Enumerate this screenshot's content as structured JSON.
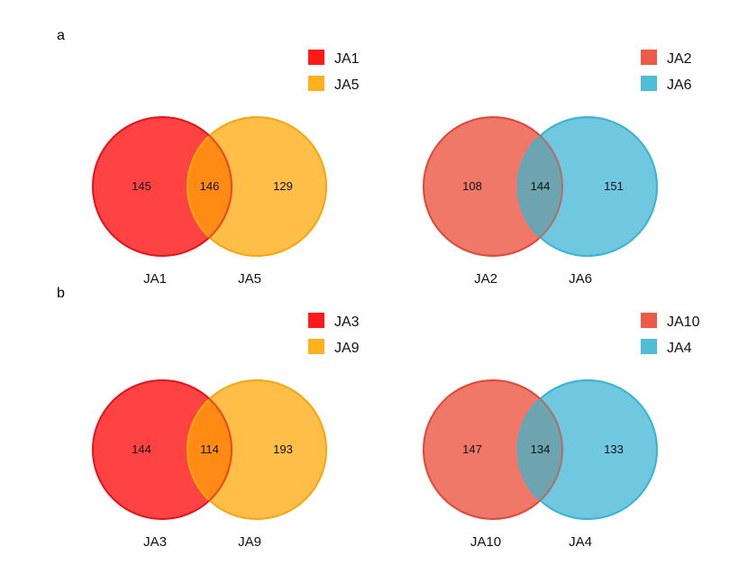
{
  "panels": [
    {
      "letter": "a",
      "diagrams": [
        {
          "sets": [
            {
              "name": "JA1",
              "color": "#ff1a1a",
              "stroke": "#e0181e"
            },
            {
              "name": "JA5",
              "color": "#ffb01e",
              "stroke": "#f5a812"
            }
          ],
          "counts": {
            "left_only": "145",
            "overlap": "146",
            "right_only": "129"
          },
          "overlap_color": "#ff8a14"
        },
        {
          "sets": [
            {
              "name": "JA2",
              "color": "#ec5a48",
              "stroke": "#de4b3c"
            },
            {
              "name": "JA6",
              "color": "#4fbcd8",
              "stroke": "#3fb4d2"
            }
          ],
          "counts": {
            "left_only": "108",
            "overlap": "144",
            "right_only": "151"
          },
          "overlap_color": "#6fa3ae"
        }
      ]
    },
    {
      "letter": "b",
      "diagrams": [
        {
          "sets": [
            {
              "name": "JA3",
              "color": "#ff1a1a",
              "stroke": "#e0181e"
            },
            {
              "name": "JA9",
              "color": "#ffb01e",
              "stroke": "#f5a812"
            }
          ],
          "counts": {
            "left_only": "144",
            "overlap": "114",
            "right_only": "193"
          },
          "overlap_color": "#ff8a14"
        },
        {
          "sets": [
            {
              "name": "JA10",
              "color": "#ec5a48",
              "stroke": "#de4b3c"
            },
            {
              "name": "JA4",
              "color": "#4fbcd8",
              "stroke": "#3fb4d2"
            }
          ],
          "counts": {
            "left_only": "147",
            "overlap": "134",
            "right_only": "133"
          },
          "overlap_color": "#6fa3ae"
        }
      ]
    }
  ]
}
